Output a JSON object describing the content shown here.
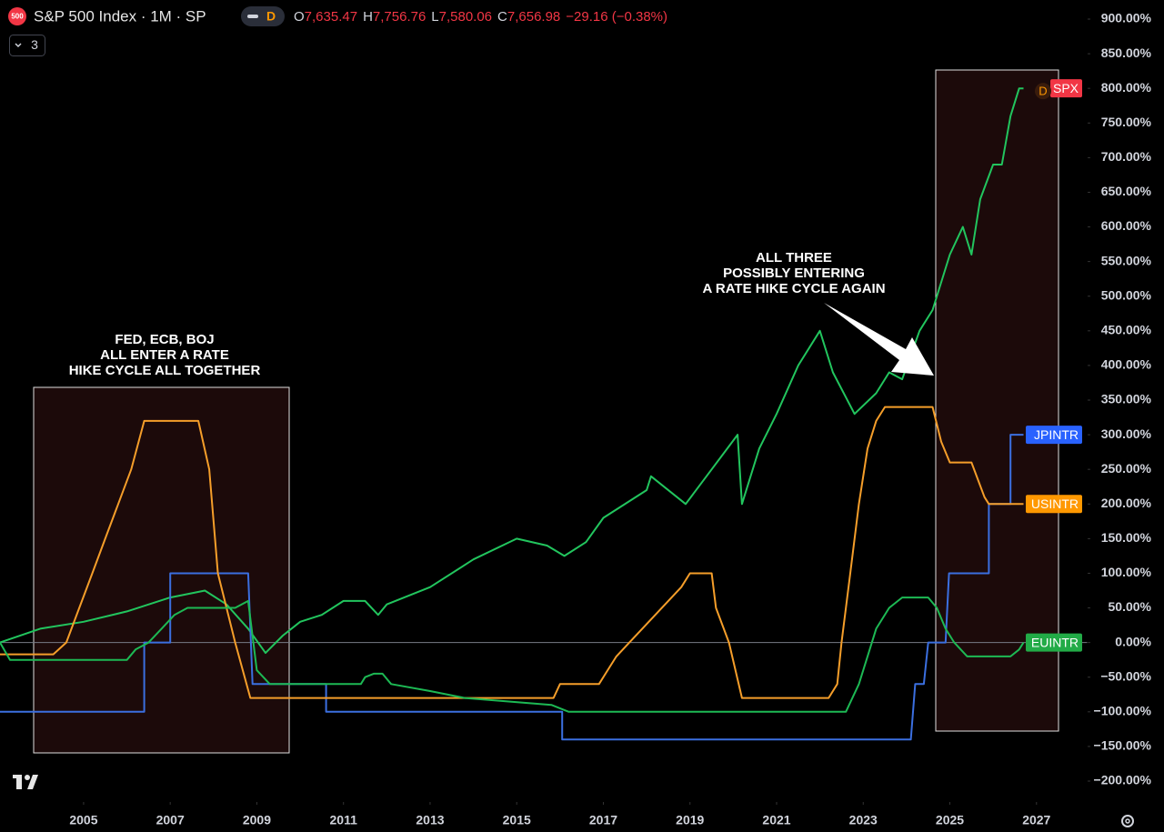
{
  "chart_data": {
    "type": "line",
    "logo_text": "500",
    "title": "S&P 500 Index · 1M · SP",
    "interval": "D",
    "ohlc": [
      {
        "label": "O",
        "value": "7,635.47"
      },
      {
        "label": "H",
        "value": "7,756.76"
      },
      {
        "label": "L",
        "value": "7,580.06"
      },
      {
        "label": "C",
        "value": "7,656.98"
      }
    ],
    "change": "−29.16 (−0.38%)",
    "indicator_count": "3",
    "event_marker": "D",
    "annotations": [
      {
        "lines": [
          "FED, ECB, BOJ",
          "ALL ENTER A RATE",
          "HIKE CYCLE ALL TOGETHER"
        ]
      },
      {
        "lines": [
          "ALL THREE",
          "POSSIBLY ENTERING",
          "A RATE HIKE CYCLE AGAIN"
        ]
      }
    ],
    "xlim": [
      2003.07,
      2028.17
    ],
    "xticks": [
      2005,
      2007,
      2009,
      2011,
      2013,
      2015,
      2017,
      2019,
      2021,
      2023,
      2025,
      2027
    ],
    "ylim": [
      -200,
      900
    ],
    "yticks": [
      {
        "value": 900,
        "label": "900.00%"
      },
      {
        "value": 850,
        "label": "850.00%"
      },
      {
        "value": 800,
        "label": "800.00%"
      },
      {
        "value": 750,
        "label": "750.00%"
      },
      {
        "value": 700,
        "label": "700.00%"
      },
      {
        "value": 650,
        "label": "650.00%"
      },
      {
        "value": 600,
        "label": "600.00%"
      },
      {
        "value": 550,
        "label": "550.00%"
      },
      {
        "value": 500,
        "label": "500.00%"
      },
      {
        "value": 450,
        "label": "450.00%"
      },
      {
        "value": 400,
        "label": "400.00%"
      },
      {
        "value": 350,
        "label": "350.00%"
      },
      {
        "value": 300,
        "label": "300.00%"
      },
      {
        "value": 250,
        "label": "250.00%"
      },
      {
        "value": 200,
        "label": "200.00%"
      },
      {
        "value": 150,
        "label": "150.00%"
      },
      {
        "value": 100,
        "label": "100.00%"
      },
      {
        "value": 50,
        "label": "50.00%"
      },
      {
        "value": 0,
        "label": "0.00%"
      },
      {
        "value": -50,
        "label": "−50.00%"
      },
      {
        "value": -100,
        "label": "−100.00%"
      },
      {
        "value": -150,
        "label": "−150.00%"
      },
      {
        "value": -200,
        "label": "−200.00%"
      }
    ],
    "baseline": 0,
    "grid": false,
    "series": [
      {
        "name": "SPX",
        "color": "#22c55e",
        "label_color": "#f23645",
        "x": [
          2003.07,
          2004,
          2005,
          2006,
          2007,
          2007.8,
          2008.3,
          2008.8,
          2009.2,
          2009.6,
          2010,
          2010.5,
          2011,
          2011.5,
          2011.8,
          2012,
          2013,
          2014,
          2015,
          2015.7,
          2016.1,
          2016.6,
          2017,
          2018,
          2018.1,
          2018.9,
          2019.5,
          2020.1,
          2020.2,
          2020.6,
          2021,
          2021.5,
          2022,
          2022.3,
          2022.8,
          2023.3,
          2023.6,
          2023.9,
          2024.3,
          2024.6,
          2025,
          2025.3,
          2025.5,
          2025.7,
          2026,
          2026.2,
          2026.4,
          2026.6,
          2026.7
        ],
        "values": [
          0,
          20,
          30,
          45,
          65,
          75,
          55,
          20,
          -15,
          10,
          30,
          40,
          60,
          60,
          40,
          55,
          80,
          120,
          150,
          140,
          125,
          145,
          180,
          220,
          240,
          200,
          250,
          300,
          200,
          280,
          330,
          400,
          450,
          390,
          330,
          360,
          390,
          380,
          450,
          480,
          560,
          600,
          560,
          640,
          690,
          690,
          760,
          800,
          800
        ]
      },
      {
        "name": "JPINTR",
        "color": "#3b6fe0",
        "label_color": "#2962ff",
        "x": [
          2003.07,
          2006.4,
          2006.4,
          2007.0,
          2007.0,
          2008.8,
          2008.9,
          2010.6,
          2010.6,
          2016.05,
          2016.05,
          2024.1,
          2024.2,
          2024.4,
          2024.5,
          2024.9,
          2024.98,
          2025.9,
          2025.9,
          2026.4,
          2026.4,
          2026.7
        ],
        "values": [
          -100,
          -100,
          0,
          0,
          100,
          100,
          -60,
          -60,
          -100,
          -100,
          -140,
          -140,
          -60,
          -60,
          0,
          0,
          100,
          100,
          200,
          200,
          300,
          300
        ]
      },
      {
        "name": "USINTR",
        "color": "#f59e2a",
        "label_color": "#ff9800",
        "x": [
          2003.07,
          2004.3,
          2004.6,
          2004.9,
          2005.2,
          2005.5,
          2005.8,
          2006.1,
          2006.4,
          2007.65,
          2007.9,
          2008.1,
          2008.5,
          2008.85,
          2015.85,
          2016.0,
          2016.9,
          2017.1,
          2017.3,
          2017.6,
          2017.9,
          2018.2,
          2018.5,
          2018.8,
          2019.0,
          2019.5,
          2019.6,
          2019.9,
          2020.2,
          2022.2,
          2022.4,
          2022.5,
          2022.7,
          2022.9,
          2023.1,
          2023.3,
          2023.5,
          2024.6,
          2024.8,
          2025.0,
          2025.5,
          2025.8,
          2025.9,
          2026.7
        ],
        "values": [
          -17,
          -17,
          0,
          50,
          100,
          150,
          200,
          250,
          320,
          320,
          250,
          100,
          0,
          -80,
          -80,
          -60,
          -60,
          -40,
          -20,
          0,
          20,
          40,
          60,
          80,
          100,
          100,
          50,
          0,
          -80,
          -80,
          -60,
          0,
          100,
          200,
          280,
          320,
          340,
          340,
          290,
          260,
          260,
          210,
          200,
          200
        ]
      },
      {
        "name": "EUINTR",
        "color": "#1db954",
        "label_color": "#22ab47",
        "x": [
          2003.07,
          2003.3,
          2006.0,
          2006.2,
          2006.5,
          2006.8,
          2007.1,
          2007.4,
          2008.5,
          2008.8,
          2009.0,
          2009.3,
          2011.4,
          2011.5,
          2011.7,
          2011.9,
          2012.1,
          2013.0,
          2013.8,
          2015.8,
          2016.2,
          2022.6,
          2022.9,
          2023.1,
          2023.3,
          2023.6,
          2023.9,
          2024.5,
          2024.7,
          2024.9,
          2025.1,
          2025.4,
          2026.4,
          2026.6,
          2026.7
        ],
        "values": [
          0,
          -25,
          -25,
          -10,
          0,
          20,
          40,
          50,
          50,
          60,
          -40,
          -60,
          -60,
          -50,
          -45,
          -45,
          -60,
          -70,
          -80,
          -90,
          -100,
          -100,
          -60,
          -20,
          20,
          50,
          65,
          65,
          50,
          20,
          0,
          -20,
          -20,
          -10,
          0
        ]
      }
    ]
  }
}
